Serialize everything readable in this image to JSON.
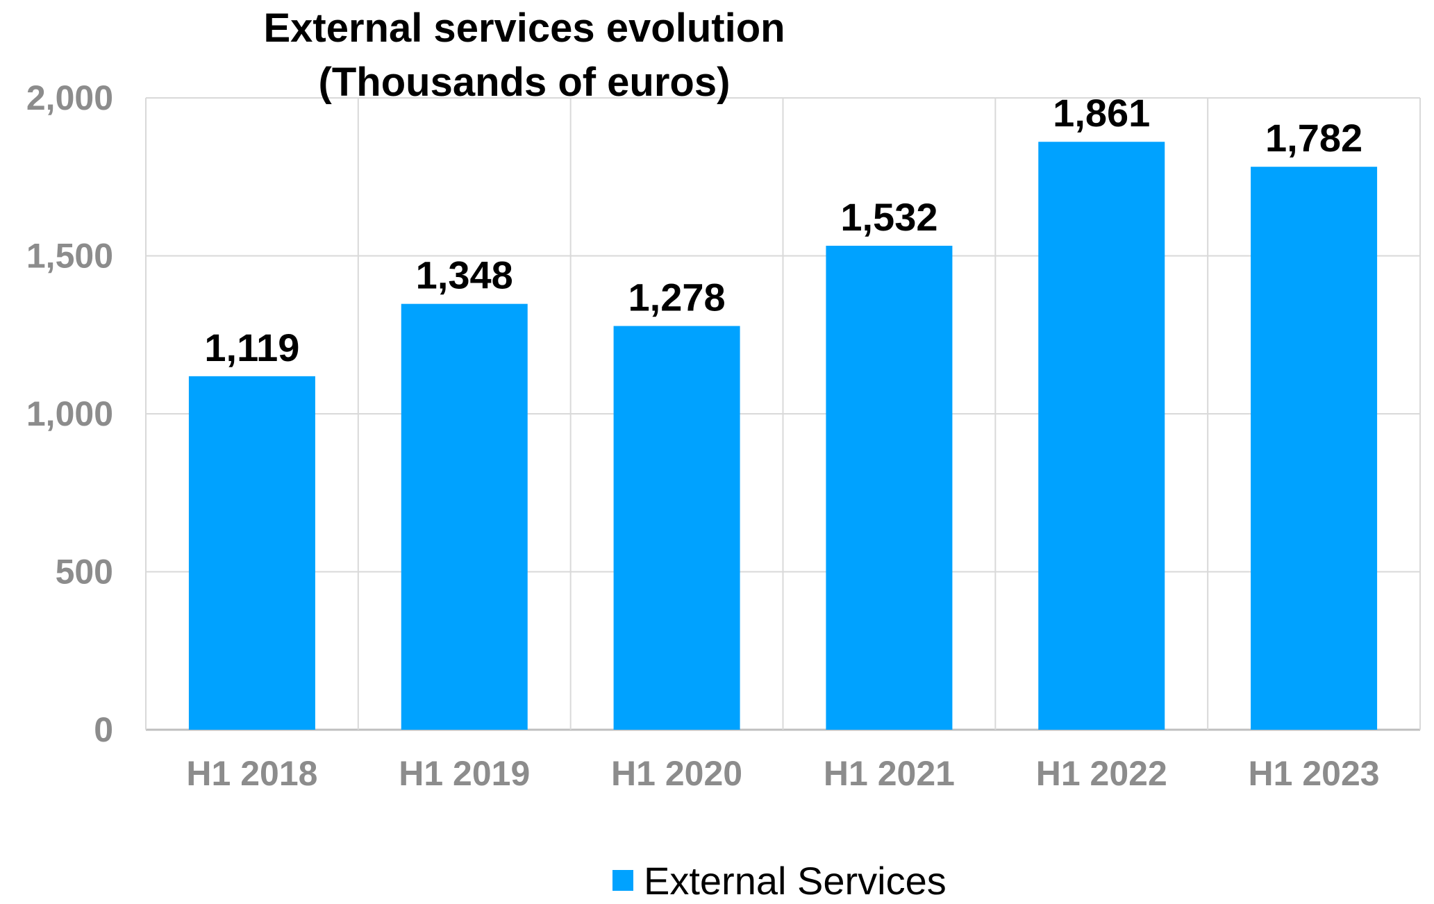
{
  "chart_data": {
    "type": "bar",
    "title_lines": [
      "External services evolution",
      "(Thousands of euros)"
    ],
    "categories": [
      "H1 2018",
      "H1 2019",
      "H1 2020",
      "H1 2021",
      "H1 2022",
      "H1 2023"
    ],
    "series": [
      {
        "name": "External Services",
        "values": [
          1119,
          1348,
          1278,
          1532,
          1861,
          1782
        ],
        "labels": [
          "1,119",
          "1,348",
          "1,278",
          "1,532",
          "1,861",
          "1,782"
        ],
        "color": "#00a2ff"
      }
    ],
    "ylim": [
      0,
      2000
    ],
    "yticks": [
      0,
      500,
      1000,
      1500,
      2000
    ],
    "ytick_labels": [
      "0",
      "500",
      "1,000",
      "1,500",
      "2,000"
    ],
    "grid": true,
    "legend_position": "bottom"
  }
}
